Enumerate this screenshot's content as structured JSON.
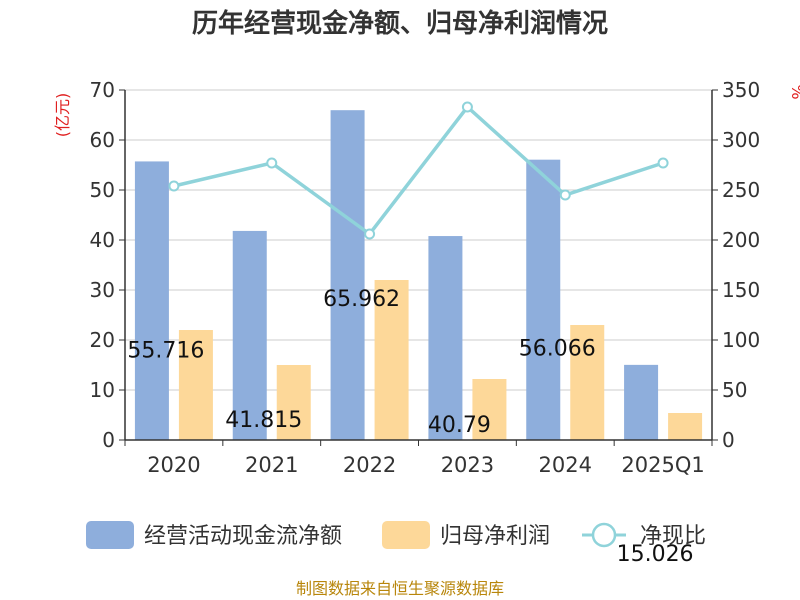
{
  "chart_data": {
    "type": "bar",
    "title": "历年经营现金净额、归母净利润情况",
    "left_unit": "(亿元)",
    "right_unit": "%",
    "categories": [
      "2020",
      "2021",
      "2022",
      "2023",
      "2024",
      "2025Q1"
    ],
    "series": [
      {
        "name": "经营活动现金流净额",
        "type": "bar",
        "axis": "left",
        "color": "#8eaedc",
        "values": [
          55.716,
          41.815,
          65.962,
          40.79,
          56.066,
          15.026
        ],
        "labels": [
          "55.716",
          "41.815",
          "65.962",
          "40.79",
          "56.066",
          "15.026"
        ]
      },
      {
        "name": "归母净利润",
        "type": "bar",
        "axis": "left",
        "color": "#fdd899",
        "values": [
          22.0,
          15.0,
          32.0,
          12.2,
          23.0,
          5.4
        ]
      },
      {
        "name": "净现比",
        "type": "line",
        "axis": "right",
        "color": "#8fd3da",
        "values": [
          254,
          277,
          206,
          333,
          245,
          277
        ]
      }
    ],
    "y_left": {
      "min": 0,
      "max": 70,
      "ticks": [
        "0",
        "10",
        "20",
        "30",
        "40",
        "50",
        "60",
        "70"
      ]
    },
    "y_right": {
      "min": 0,
      "max": 350,
      "ticks": [
        "0",
        "50",
        "100",
        "150",
        "200",
        "250",
        "300",
        "350"
      ]
    },
    "grid": true,
    "legend_position": "bottom"
  },
  "source": "制图数据来自恒生聚源数据库"
}
